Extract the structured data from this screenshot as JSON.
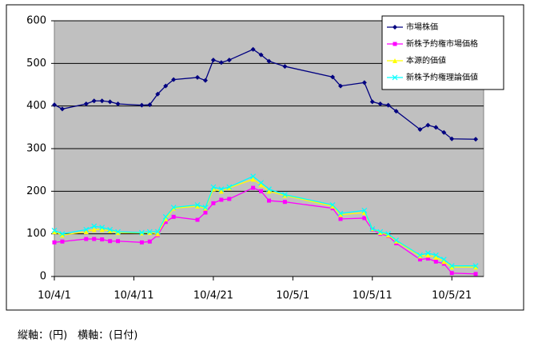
{
  "chart_data": {
    "type": "line",
    "x": [
      "10/4/1",
      "10/4/2",
      "10/4/5",
      "10/4/6",
      "10/4/7",
      "10/4/8",
      "10/4/9",
      "10/4/12",
      "10/4/13",
      "10/4/14",
      "10/4/15",
      "10/4/16",
      "10/4/19",
      "10/4/20",
      "10/4/21",
      "10/4/22",
      "10/4/23",
      "10/4/26",
      "10/4/27",
      "10/4/28",
      "10/4/30",
      "10/5/6",
      "10/5/7",
      "10/5/10",
      "10/5/11",
      "10/5/12",
      "10/5/13",
      "10/5/14",
      "10/5/17",
      "10/5/18",
      "10/5/19",
      "10/5/20",
      "10/5/21",
      "10/5/24"
    ],
    "series": [
      {
        "name": "市場株価",
        "color": "#000080",
        "marker": "diamond",
        "values": [
          403,
          393,
          405,
          412,
          412,
          410,
          405,
          402,
          403,
          428,
          447,
          462,
          467,
          460,
          508,
          502,
          508,
          533,
          520,
          505,
          493,
          468,
          447,
          455,
          410,
          405,
          402,
          388,
          345,
          355,
          350,
          338,
          323,
          322
        ]
      },
      {
        "name": "新株予約権市場価格",
        "color": "#ff00ff",
        "marker": "square",
        "values": [
          80,
          82,
          88,
          88,
          87,
          83,
          83,
          80,
          82,
          97,
          128,
          140,
          133,
          150,
          172,
          180,
          182,
          208,
          200,
          178,
          175,
          160,
          135,
          137,
          110,
          100,
          95,
          78,
          40,
          42,
          35,
          30,
          8,
          6
        ]
      },
      {
        "name": "本源的価値",
        "color": "#ffff00",
        "marker": "triangle",
        "values": [
          105,
          97,
          105,
          110,
          110,
          107,
          103,
          102,
          103,
          100,
          135,
          160,
          165,
          160,
          205,
          200,
          208,
          228,
          215,
          200,
          190,
          165,
          145,
          150,
          112,
          103,
          97,
          83,
          48,
          50,
          45,
          35,
          22,
          22
        ]
      },
      {
        "name": "新株予約権理論価値",
        "color": "#00ffff",
        "marker": "cross",
        "values": [
          108,
          100,
          110,
          118,
          115,
          110,
          105,
          103,
          105,
          105,
          140,
          162,
          168,
          162,
          210,
          205,
          210,
          235,
          220,
          205,
          192,
          168,
          148,
          155,
          112,
          105,
          100,
          85,
          50,
          55,
          50,
          40,
          25,
          25
        ]
      }
    ],
    "xlim": [
      "10/4/1",
      "10/5/25"
    ],
    "xticks": [
      "10/4/1",
      "10/4/11",
      "10/4/21",
      "10/5/1",
      "10/5/11",
      "10/5/21"
    ],
    "ylim": [
      0,
      600
    ],
    "yticks": [
      0,
      100,
      200,
      300,
      400,
      500,
      600
    ],
    "grid": true,
    "legend": "top-right",
    "footnote": "縦軸：(円)　横軸：(日付)"
  }
}
